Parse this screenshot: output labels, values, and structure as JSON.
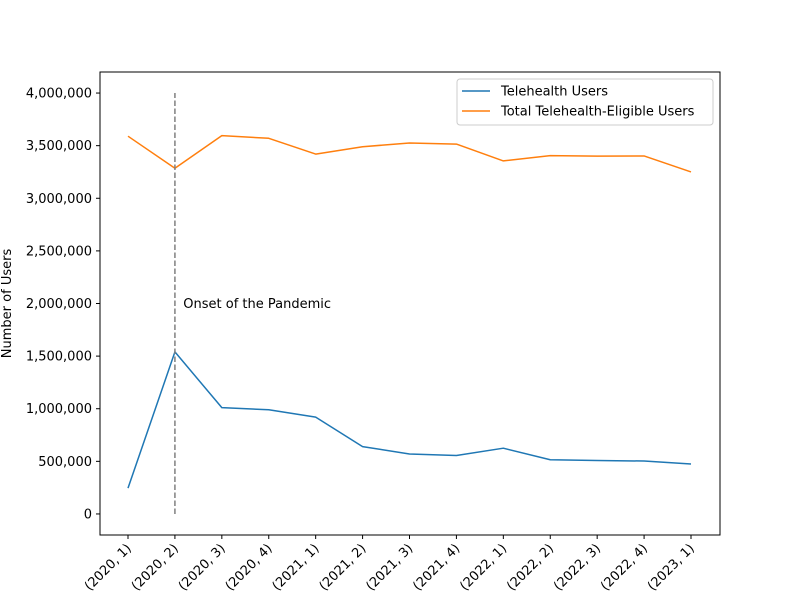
{
  "chart_data": {
    "type": "line",
    "title": "",
    "xlabel": "",
    "ylabel": "Number of Users",
    "categories": [
      "(2020, 1)",
      "(2020, 2)",
      "(2020, 3)",
      "(2020, 4)",
      "(2021, 1)",
      "(2021, 2)",
      "(2021, 3)",
      "(2021, 4)",
      "(2022, 1)",
      "(2022, 2)",
      "(2022, 3)",
      "(2022, 4)",
      "(2023, 1)"
    ],
    "yticks": [
      0,
      500000,
      1000000,
      1500000,
      2000000,
      2500000,
      3000000,
      3500000,
      4000000
    ],
    "ytick_labels": [
      "0",
      "500,000",
      "1,000,000",
      "1,500,000",
      "2,000,000",
      "2,500,000",
      "3,000,000",
      "3,500,000",
      "4,000,000"
    ],
    "ylim": [
      -200000,
      4200000
    ],
    "grid": false,
    "legend_position": "top-right",
    "series": [
      {
        "name": "Telehealth Users",
        "color": "#1f77b4",
        "values": [
          245000,
          1540000,
          1010000,
          990000,
          920000,
          640000,
          570000,
          555000,
          625000,
          515000,
          508000,
          503000,
          475000
        ]
      },
      {
        "name": "Total Telehealth-Eligible Users",
        "color": "#ff7f0e",
        "values": [
          3590000,
          3285000,
          3595000,
          3570000,
          3420000,
          3490000,
          3525000,
          3515000,
          3355000,
          3405000,
          3400000,
          3402000,
          3250000
        ]
      }
    ],
    "vline": {
      "category_index": 1,
      "ymin": 0,
      "ymax": 4000000,
      "color": "#808080",
      "style": "dashed"
    },
    "annotation": {
      "text": "Onset of the Pandemic",
      "x_category_index": 1.2,
      "y": 2000000
    }
  }
}
